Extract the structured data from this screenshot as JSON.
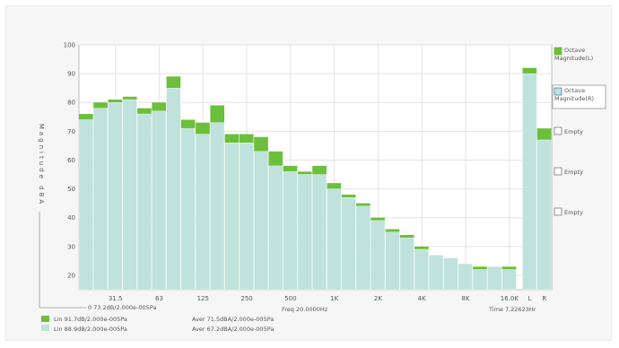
{
  "chart_data": {
    "type": "bar",
    "ylabel": "Magnitude dBA",
    "ylim": [
      15,
      100
    ],
    "yticks": [
      20,
      30,
      40,
      50,
      60,
      70,
      80,
      90,
      100
    ],
    "xtick_labels": [
      "31.5",
      "63",
      "125",
      "250",
      "500",
      "1K",
      "2K",
      "4K",
      "8K",
      "16.0K",
      "L",
      "R"
    ],
    "xtick_positions": [
      2.5,
      5.5,
      8.5,
      11.5,
      14.5,
      17.5,
      20.5,
      23.5,
      26.5,
      29.5,
      31,
      32
    ],
    "band_count": 30,
    "series": [
      {
        "name": "Octave Magnitude(L)",
        "color": "#6cbf3a",
        "values": [
          76,
          80,
          81,
          82,
          78,
          80,
          89,
          74,
          73,
          79,
          69,
          69,
          68,
          63,
          58,
          56,
          58,
          52,
          48,
          45,
          40,
          36,
          34,
          30,
          27,
          26,
          24,
          23,
          23,
          23
        ],
        "lr": [
          92,
          71
        ]
      },
      {
        "name": "Octave Magnitude(R)",
        "color": "#bfe2dc",
        "values": [
          74,
          78,
          80,
          81,
          76,
          77,
          85,
          71,
          69,
          73,
          66,
          66,
          63,
          58,
          56,
          55,
          55,
          50,
          47,
          44,
          39,
          35,
          33,
          29,
          27,
          26,
          24,
          22,
          23,
          22
        ],
        "lr": [
          90,
          67
        ]
      }
    ],
    "legend": {
      "placement": "right",
      "entries": [
        "Octave Magnitude(L)",
        "Octave Magnitude(R)",
        "Empty",
        "Empty",
        "Empty"
      ]
    },
    "annotations": {
      "bottom_left": "0 73.2dB/2.000e-005Pa",
      "freq": "Freq 20.0000Hz",
      "time": "Time 7.22623Hr",
      "row1_left": "Lin 91.7dB/2.000e-005Pa",
      "row1_right": "Aver 71.5dBA/2.000e-005Pa",
      "row2_left": "Lin 88.9dB/2.000e-005Pa",
      "row2_right": "Aver 67.2dBA/2.000e-005Pa"
    }
  }
}
